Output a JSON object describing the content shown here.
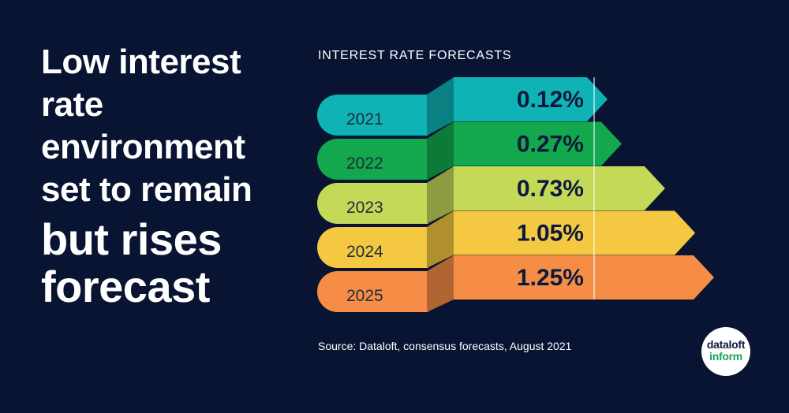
{
  "headline": {
    "line1": "Low interest",
    "line2": "rate",
    "line3": "environment",
    "line4": "set to remain",
    "line5": "but rises",
    "line6": "forecast"
  },
  "source": "Source: Dataloft, consensus forecasts, August 2021",
  "logo": {
    "line1": "dataloft",
    "line2": "inform",
    "name": "dataloft-inform-logo"
  },
  "colors": {
    "background": "#081432",
    "title_text": "#ffffff",
    "logo_green": "#19a35a"
  },
  "chart_data": {
    "type": "bar",
    "title": "INTEREST RATE FORECASTS",
    "categories": [
      "2021",
      "2022",
      "2023",
      "2024",
      "2025"
    ],
    "values": [
      0.12,
      0.27,
      0.73,
      1.05,
      1.25
    ],
    "value_labels": [
      "0.12%",
      "0.27%",
      "0.73%",
      "1.05%",
      "1.25%"
    ],
    "unit": "%",
    "colors": [
      "#0fb3b5",
      "#13a84d",
      "#c5d959",
      "#f5c842",
      "#f58d47"
    ],
    "shade_colors": [
      "#0b8083",
      "#0e7a38",
      "#8d9c40",
      "#b08f2f",
      "#b06533"
    ],
    "orientation": "horizontal",
    "grid": false
  }
}
